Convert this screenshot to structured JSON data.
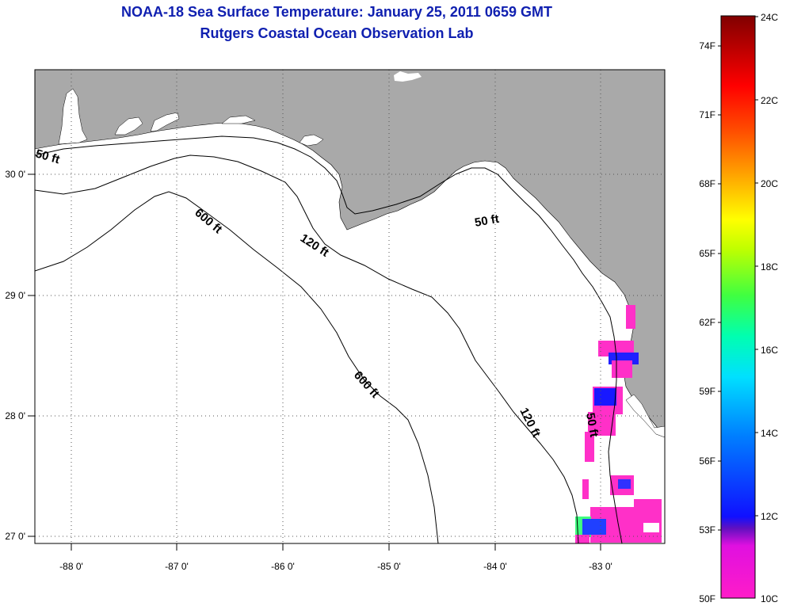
{
  "title": "NOAA-18 Sea Surface Temperature:  January 25, 2011 0659 GMT",
  "subtitle": "Rutgers Coastal Ocean Observation Lab",
  "axes": {
    "lon_ticks": [
      "-88 0'",
      "-87 0'",
      "-86 0'",
      "-85 0'",
      "-84 0'",
      "-83 0'"
    ],
    "lat_ticks": [
      "30 0'",
      "29 0'",
      "28 0'",
      "27 0'"
    ]
  },
  "contours": {
    "c50a": "50 ft",
    "c50b": "50 ft",
    "c50c": "50 ft",
    "c120a": "120 ft",
    "c120b": "120 ft",
    "c600a": "600 ft",
    "c600b": "600 ft"
  },
  "colorbar": {
    "fahrenheit": [
      "74F",
      "71F",
      "68F",
      "65F",
      "62F",
      "59F",
      "56F",
      "53F",
      "50F"
    ],
    "celsius": [
      "24C",
      "22C",
      "20C",
      "18C",
      "16C",
      "14C",
      "12C",
      "10C"
    ]
  },
  "colors": {
    "land": "#a9a9a9",
    "title": "#1020b0"
  }
}
